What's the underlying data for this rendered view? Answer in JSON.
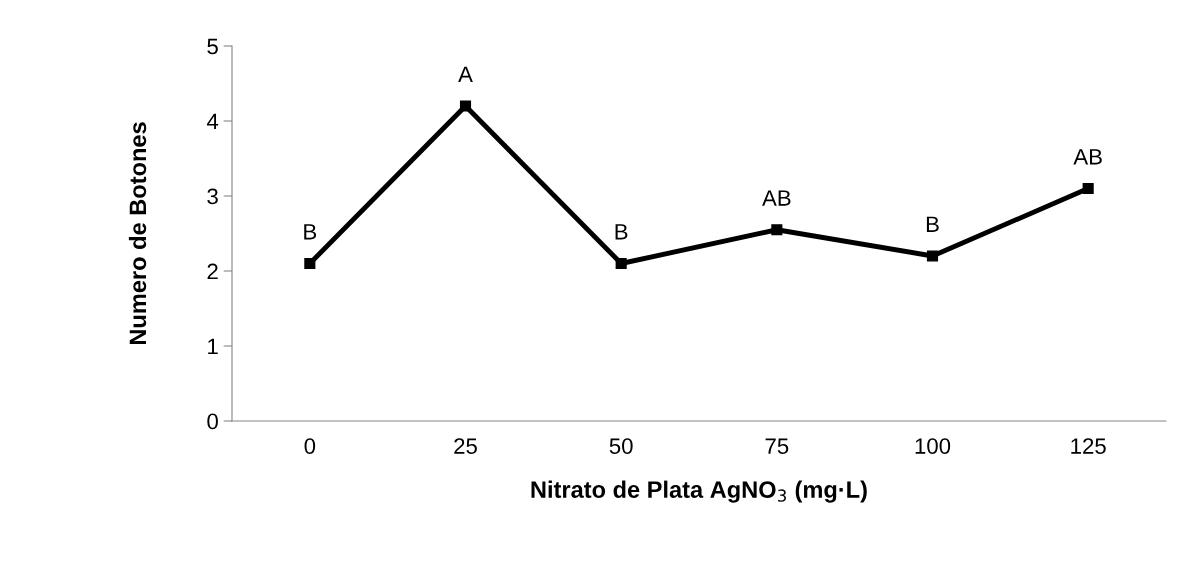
{
  "chart_data": {
    "type": "line",
    "xlabel": "Nitrato de Plata AgNO$_{3}$ (mg·L)",
    "ylabel": "Numero de Botones",
    "categories": [
      "0",
      "25",
      "50",
      "75",
      "100",
      "125"
    ],
    "series": [
      {
        "color": "#000000",
        "values": [
          2.1,
          4.2,
          2.1,
          2.55,
          2.2,
          3.1
        ]
      }
    ],
    "ylim": [
      0,
      5
    ],
    "yticks": [
      0,
      1,
      2,
      3,
      4,
      5
    ],
    "grid": false,
    "legend": false,
    "marker": "square",
    "line_style": "solid",
    "annotations": [
      {
        "text": "B",
        "x": "0",
        "y": 2.1
      },
      {
        "text": "A",
        "x": "25",
        "y": 4.2
      },
      {
        "text": "B",
        "x": "50",
        "y": 2.1
      },
      {
        "text": "AB",
        "x": "75",
        "y": 2.55
      },
      {
        "text": "B",
        "x": "100",
        "y": 2.2
      },
      {
        "text": "AB",
        "x": "125",
        "y": 3.1
      }
    ]
  }
}
